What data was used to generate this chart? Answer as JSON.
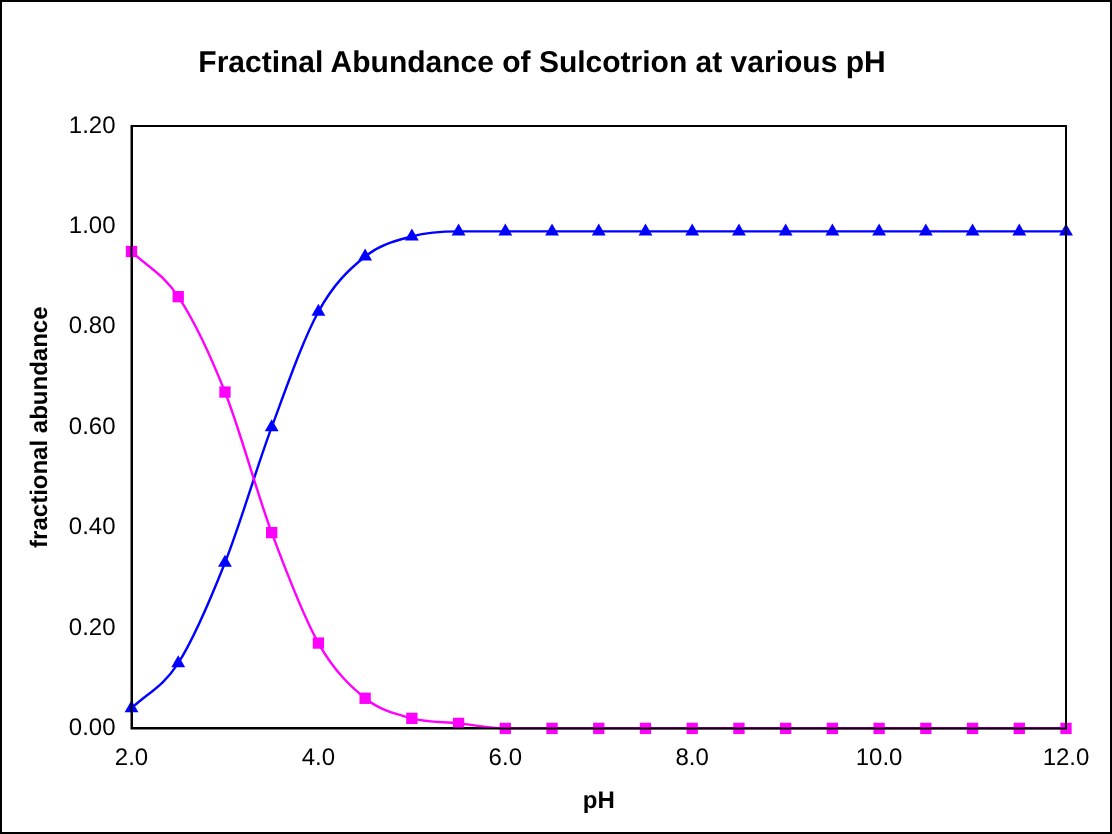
{
  "chart_data": {
    "type": "line",
    "title": "Fractinal Abundance of Sulcotrion at various pH",
    "xlabel": "pH",
    "ylabel": "fractional abundance",
    "x": [
      2,
      2.5,
      3,
      3.5,
      4,
      4.5,
      5,
      5.5,
      6,
      6.5,
      7,
      7.5,
      8,
      8.5,
      9,
      9.5,
      10,
      10.5,
      11,
      11.5,
      12
    ],
    "series": [
      {
        "color": "#ff00ff",
        "marker": "square",
        "values": [
          0.95,
          0.86,
          0.67,
          0.39,
          0.17,
          0.06,
          0.02,
          0.01,
          0,
          0,
          0,
          0,
          0,
          0,
          0,
          0,
          0,
          0,
          0,
          0,
          0
        ]
      },
      {
        "color": "#0000ff",
        "marker": "triangle",
        "values": [
          0.04,
          0.13,
          0.33,
          0.6,
          0.83,
          0.94,
          0.98,
          0.99,
          0.99,
          0.99,
          0.99,
          0.99,
          0.99,
          0.99,
          0.99,
          0.99,
          0.99,
          0.99,
          0.99,
          0.99,
          0.99
        ]
      }
    ],
    "xlim": [
      2,
      12
    ],
    "xticks": [
      {
        "value": 2,
        "label": "2.0"
      },
      {
        "value": 4,
        "label": "4.0"
      },
      {
        "value": 6,
        "label": "6.0"
      },
      {
        "value": 8,
        "label": "8.0"
      },
      {
        "value": 10,
        "label": "10.0"
      },
      {
        "value": 12,
        "label": "12.0"
      }
    ],
    "ylim": [
      0,
      1.2
    ],
    "yticks": [
      {
        "value": 0,
        "label": "0.00"
      },
      {
        "value": 0.2,
        "label": "0.20"
      },
      {
        "value": 0.4,
        "label": "0.40"
      },
      {
        "value": 0.6,
        "label": "0.60"
      },
      {
        "value": 0.8,
        "label": "0.80"
      },
      {
        "value": 1,
        "label": "1.00"
      },
      {
        "value": 1.2,
        "label": "1.20"
      }
    ],
    "grid": false,
    "legend": false
  }
}
